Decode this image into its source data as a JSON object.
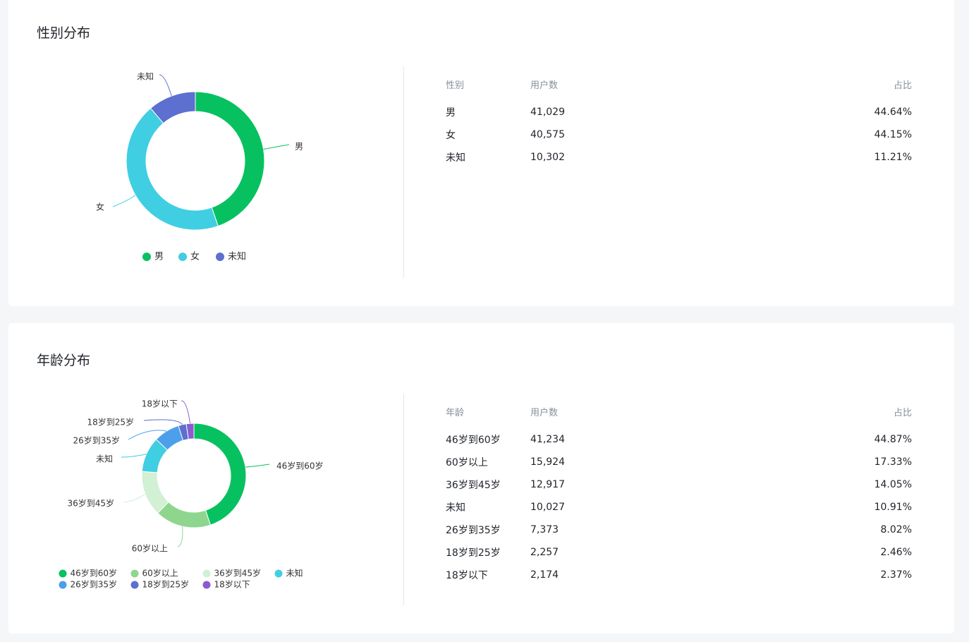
{
  "gender_section": {
    "title": "性别分布",
    "table": {
      "headers": [
        "性别",
        "用户数",
        "占比"
      ],
      "rows": [
        {
          "name": "男",
          "count": "41,029",
          "pct": "44.64%"
        },
        {
          "name": "女",
          "count": "40,575",
          "pct": "44.15%"
        },
        {
          "name": "未知",
          "count": "10,302",
          "pct": "11.21%"
        }
      ]
    }
  },
  "age_section": {
    "title": "年龄分布",
    "table": {
      "headers": [
        "年龄",
        "用户数",
        "占比"
      ],
      "rows": [
        {
          "name": "46岁到60岁",
          "count": "41,234",
          "pct": "44.87%"
        },
        {
          "name": "60岁以上",
          "count": "15,924",
          "pct": "17.33%"
        },
        {
          "name": "36岁到45岁",
          "count": "12,917",
          "pct": "14.05%"
        },
        {
          "name": "未知",
          "count": "10,027",
          "pct": "10.91%"
        },
        {
          "name": "26岁到35岁",
          "count": "7,373",
          "pct": "8.02%"
        },
        {
          "name": "18岁到25岁",
          "count": "2,257",
          "pct": "2.46%"
        },
        {
          "name": "18岁以下",
          "count": "2,174",
          "pct": "2.37%"
        }
      ]
    }
  },
  "chart_data": [
    {
      "type": "pie",
      "title": "性别分布",
      "donut": true,
      "legend": "bottom",
      "categories": [
        "男",
        "女",
        "未知"
      ],
      "values": [
        41029,
        40575,
        10302
      ],
      "percents": [
        44.64,
        44.15,
        11.21
      ],
      "colors": [
        "#07c160",
        "#40cee2",
        "#5d6fcf"
      ]
    },
    {
      "type": "pie",
      "title": "年龄分布",
      "donut": true,
      "legend": "bottom",
      "categories": [
        "46岁到60岁",
        "60岁以上",
        "36岁到45岁",
        "未知",
        "26岁到35岁",
        "18岁到25岁",
        "18岁以下"
      ],
      "values": [
        41234,
        15924,
        12917,
        10027,
        7373,
        2257,
        2174
      ],
      "percents": [
        44.87,
        17.33,
        14.05,
        10.91,
        8.02,
        2.46,
        2.37
      ],
      "colors": [
        "#07c160",
        "#8ed68e",
        "#d1f0d4",
        "#40cee2",
        "#4c9fea",
        "#5d6fcf",
        "#8a5ccf"
      ]
    }
  ]
}
